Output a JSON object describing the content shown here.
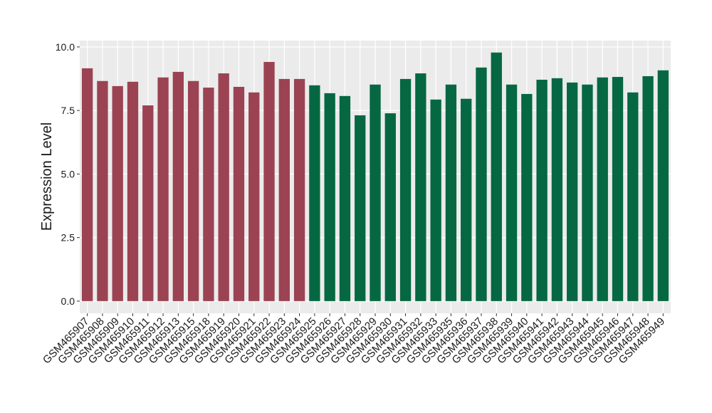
{
  "chart_data": {
    "type": "bar",
    "y_label": "Expression Level",
    "categories": [
      "GSM465907",
      "GSM465908",
      "GSM465909",
      "GSM465910",
      "GSM465911",
      "GSM465912",
      "GSM465913",
      "GSM465915",
      "GSM465918",
      "GSM465919",
      "GSM465920",
      "GSM465921",
      "GSM465922",
      "GSM465923",
      "GSM465924",
      "GSM465925",
      "GSM465926",
      "GSM465927",
      "GSM465928",
      "GSM465929",
      "GSM465930",
      "GSM465931",
      "GSM465932",
      "GSM465933",
      "GSM465935",
      "GSM465936",
      "GSM465937",
      "GSM465938",
      "GSM465939",
      "GSM465940",
      "GSM465941",
      "GSM465942",
      "GSM465943",
      "GSM465944",
      "GSM465945",
      "GSM465946",
      "GSM465947",
      "GSM465948",
      "GSM465949"
    ],
    "values": [
      9.16,
      8.66,
      8.46,
      8.63,
      7.7,
      8.8,
      9.02,
      8.66,
      8.4,
      8.96,
      8.43,
      8.21,
      9.41,
      8.74,
      8.74,
      8.49,
      8.18,
      8.07,
      7.31,
      8.52,
      7.39,
      8.74,
      8.96,
      7.93,
      8.52,
      7.96,
      9.19,
      9.78,
      8.52,
      8.15,
      8.71,
      8.77,
      8.6,
      8.52,
      8.8,
      8.82,
      8.21,
      8.85,
      9.08
    ],
    "colors": [
      "#9b4352",
      "#9b4352",
      "#9b4352",
      "#9b4352",
      "#9b4352",
      "#9b4352",
      "#9b4352",
      "#9b4352",
      "#9b4352",
      "#9b4352",
      "#9b4352",
      "#9b4352",
      "#9b4352",
      "#9b4352",
      "#9b4352",
      "#056843",
      "#056843",
      "#056843",
      "#056843",
      "#056843",
      "#056843",
      "#056843",
      "#056843",
      "#056843",
      "#056843",
      "#056843",
      "#056843",
      "#056843",
      "#056843",
      "#056843",
      "#056843",
      "#056843",
      "#056843",
      "#056843",
      "#056843",
      "#056843",
      "#056843",
      "#056843",
      "#056843"
    ],
    "ylim": [
      -0.48,
      10.25
    ],
    "yticks": [
      {
        "value": 0,
        "label": "0.0"
      },
      {
        "value": 2.5,
        "label": "2.5"
      },
      {
        "value": 5,
        "label": "5.0"
      },
      {
        "value": 7.5,
        "label": "7.5"
      },
      {
        "value": 10,
        "label": "10.0"
      }
    ],
    "grid": true
  }
}
